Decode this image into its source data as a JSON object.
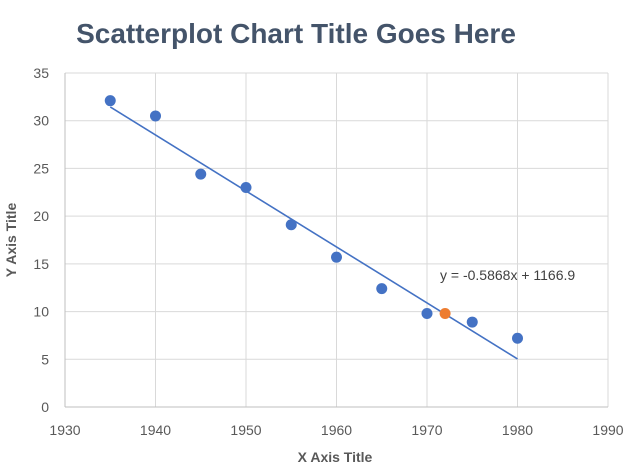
{
  "chart_data": {
    "type": "scatter",
    "title": "Scatterplot Chart Title Goes Here",
    "xlabel": "X Axis Title",
    "ylabel": "Y Axis Title",
    "xlim": [
      1930,
      1990
    ],
    "ylim": [
      0,
      35
    ],
    "x_ticks": [
      1930,
      1940,
      1950,
      1960,
      1970,
      1980,
      1990
    ],
    "y_ticks": [
      0,
      5,
      10,
      15,
      20,
      25,
      30,
      35
    ],
    "grid": true,
    "points": [
      {
        "x": 1935,
        "y": 32.1,
        "color": "#4472c4"
      },
      {
        "x": 1940,
        "y": 30.5,
        "color": "#4472c4"
      },
      {
        "x": 1945,
        "y": 24.4,
        "color": "#4472c4"
      },
      {
        "x": 1950,
        "y": 23.0,
        "color": "#4472c4"
      },
      {
        "x": 1955,
        "y": 19.1,
        "color": "#4472c4"
      },
      {
        "x": 1960,
        "y": 15.7,
        "color": "#4472c4"
      },
      {
        "x": 1965,
        "y": 12.4,
        "color": "#4472c4"
      },
      {
        "x": 1970,
        "y": 9.8,
        "color": "#4472c4"
      },
      {
        "x": 1972,
        "y": 9.8,
        "color": "#ed7d31"
      },
      {
        "x": 1975,
        "y": 8.9,
        "color": "#4472c4"
      },
      {
        "x": 1980,
        "y": 7.2,
        "color": "#4472c4"
      }
    ],
    "trendline": {
      "slope": -0.5868,
      "intercept": 1166.9,
      "x_start": 1935,
      "x_end": 1980,
      "equation": "y = -0.5868x + 1166.9",
      "color": "#4472c4"
    },
    "colors": {
      "series": "#4472c4",
      "highlight": "#ed7d31",
      "gridline": "#d9d9d9",
      "axis": "#bfbfbf",
      "text": "#595959",
      "title": "#44546a"
    }
  }
}
